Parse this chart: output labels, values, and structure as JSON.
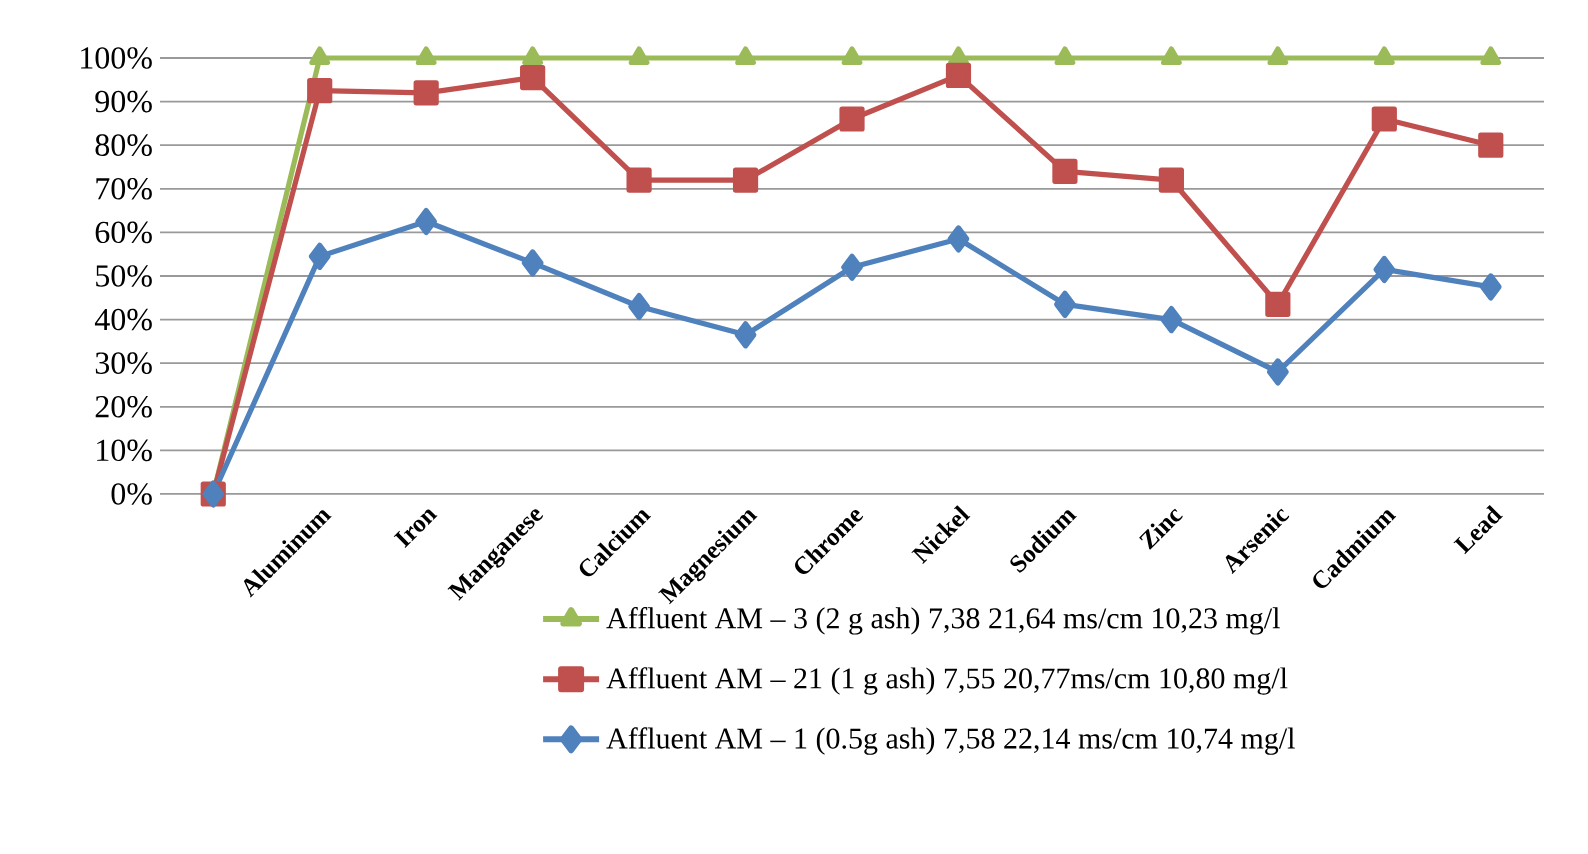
{
  "chart_data": {
    "type": "line",
    "categories": [
      null,
      "Aluminum",
      "Iron",
      "Manganese",
      "Calcium",
      "Magnesium",
      "Chrome",
      "Nickel",
      "Sodium",
      "Zinc",
      "Arsenic",
      "Cadmium",
      "Lead"
    ],
    "series": [
      {
        "name": "Affluent AM – 3 (2 g ash) 7,38 21,64 ms/cm 10,23 mg/l",
        "color": "#9bbb59",
        "marker": "triangle",
        "values": [
          0,
          100,
          100,
          100,
          100,
          100,
          100,
          100,
          100,
          100,
          100,
          100,
          100
        ]
      },
      {
        "name": "Affluent AM – 21 (1 g ash) 7,55 20,77ms/cm 10,80 mg/l",
        "color": "#c0504d",
        "marker": "square",
        "values": [
          0,
          92.5,
          92,
          95.5,
          72,
          72,
          86,
          96,
          74,
          72,
          43.5,
          86,
          80
        ]
      },
      {
        "name": "Affluent AM – 1 (0.5g ash) 7,58 22,14 ms/cm 10,74 mg/l",
        "color": "#4f81bd",
        "marker": "diamond",
        "values": [
          0,
          54.5,
          62.5,
          53,
          43,
          36.5,
          52,
          58.5,
          43.5,
          40,
          28,
          51.5,
          47.5
        ]
      }
    ],
    "ylim": [
      0,
      100
    ],
    "yticks": [
      {
        "value": 0,
        "label": "0%"
      },
      {
        "value": 10,
        "label": "10%"
      },
      {
        "value": 20,
        "label": "20%"
      },
      {
        "value": 30,
        "label": "30%"
      },
      {
        "value": 40,
        "label": "40%"
      },
      {
        "value": 50,
        "label": "50%"
      },
      {
        "value": 60,
        "label": "60%"
      },
      {
        "value": 70,
        "label": "70%"
      },
      {
        "value": 80,
        "label": "80%"
      },
      {
        "value": 90,
        "label": "90%"
      },
      {
        "value": 100,
        "label": "100%"
      }
    ],
    "grid": "y",
    "legend": "bottom right",
    "line_style": "solid"
  }
}
